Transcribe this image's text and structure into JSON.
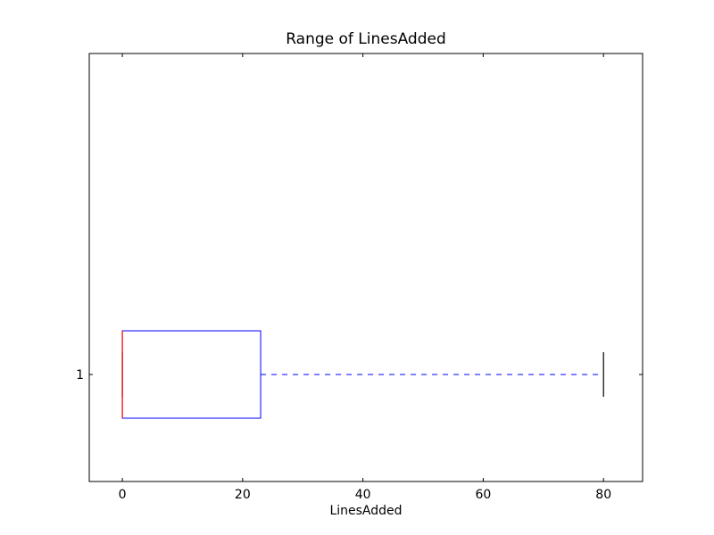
{
  "chart_data": {
    "type": "boxplot",
    "orientation": "horizontal",
    "title": "Range of LinesAdded",
    "xlabel": "LinesAdded",
    "ylabel": "",
    "xlim": [
      -5.5,
      86.5
    ],
    "xticks": [
      0,
      20,
      40,
      60,
      80
    ],
    "categories": [
      "1"
    ],
    "boxes": [
      {
        "label": "1",
        "whisker_low": 0,
        "q1": 0,
        "median": 0,
        "q3": 23,
        "whisker_high": 80
      }
    ],
    "grid": false,
    "colors": {
      "box": "#0000ff",
      "whisker": "#0000ff",
      "median": "#ff0000",
      "cap": "#000000"
    }
  }
}
